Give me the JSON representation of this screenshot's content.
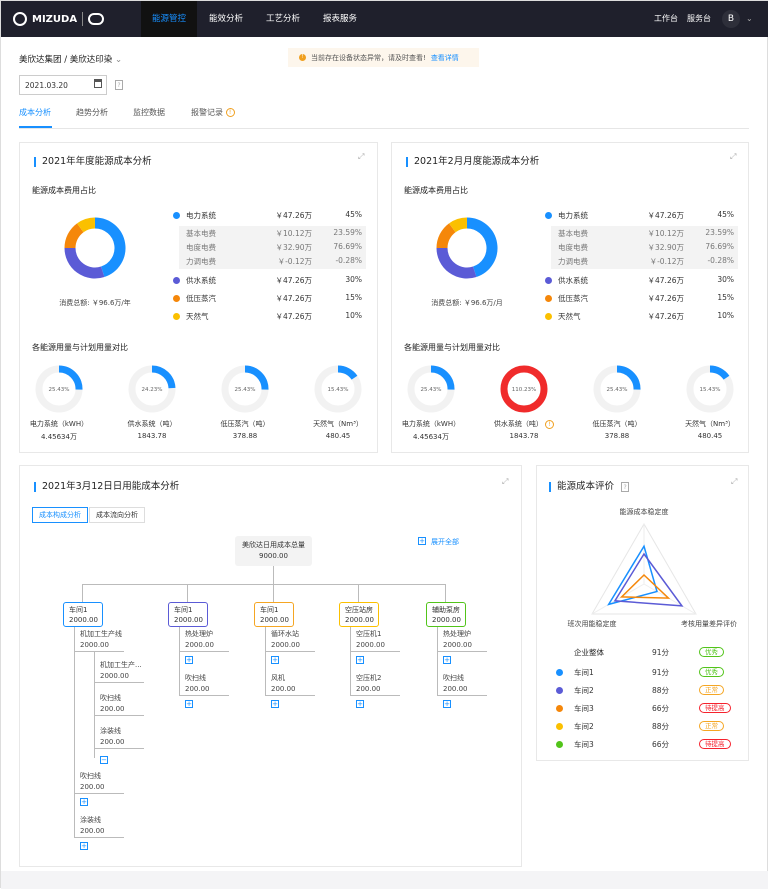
{
  "nav": {
    "brand": "MIZUDA",
    "items": [
      "能源管控",
      "能效分析",
      "工艺分析",
      "报表服务"
    ],
    "active": 0,
    "right": [
      "工作台",
      "服务台"
    ],
    "avatar": "B"
  },
  "breadcrumb": {
    "group": "美欣达集团",
    "sep": "/",
    "company": "美欣达印染"
  },
  "alert": {
    "text": "当前存在设备状态异常，请及时查看!",
    "link": "查看详情"
  },
  "date": {
    "value": "2021.03.20",
    "help": "?"
  },
  "tabs": [
    "成本分析",
    "趋势分析",
    "监控数据",
    "报警记录"
  ],
  "colors": {
    "accent": "#1890ff",
    "electric": "#1890ff",
    "water": "#5b5bd6",
    "steam": "#f5870a",
    "gas": "#fbc000",
    "green": "#52c41a",
    "red": "#f5222d"
  },
  "yearly": {
    "title": "2021年年度能源成本分析",
    "ratio_title": "能源成本费用占比",
    "total": "消费总额: ￥96.6万/年",
    "legend": [
      {
        "name": "电力系统",
        "amount": "￥47.26万",
        "pct": "45%",
        "value": 45,
        "color": "#1890ff"
      },
      {
        "name": "供水系统",
        "amount": "￥47.26万",
        "pct": "30%",
        "value": 30,
        "color": "#5b5bd6"
      },
      {
        "name": "低压蒸汽",
        "amount": "￥47.26万",
        "pct": "15%",
        "value": 15,
        "color": "#f5870a"
      },
      {
        "name": "天然气",
        "amount": "￥47.26万",
        "pct": "10%",
        "value": 10,
        "color": "#fbc000"
      }
    ],
    "sub": [
      {
        "name": "基本电费",
        "amount": "￥10.12万",
        "pct": "23.59%"
      },
      {
        "name": "电度电费",
        "amount": "￥32.90万",
        "pct": "76.69%"
      },
      {
        "name": "力调电费",
        "amount": "￥-0.12万",
        "pct": "-0.28%"
      }
    ],
    "compare_title": "各能源用量与计划用量对比",
    "rings": [
      {
        "pct": "25.43%",
        "value": 25.43,
        "label": "电力系统（kWH）",
        "amount": "4.45634万"
      },
      {
        "pct": "24.23%",
        "value": 24.23,
        "label": "供水系统（吨）",
        "amount": "1843.78"
      },
      {
        "pct": "25.43%",
        "value": 25.43,
        "label": "低压蒸汽（吨）",
        "amount": "378.88"
      },
      {
        "pct": "15.43%",
        "value": 15.43,
        "label": "天然气（Nm³）",
        "amount": "480.45"
      }
    ]
  },
  "monthly": {
    "title": "2021年2月月度能源成本分析",
    "ratio_title": "能源成本费用占比",
    "total": "消费总额: ￥96.6万/月",
    "legend": [
      {
        "name": "电力系统",
        "amount": "￥47.26万",
        "pct": "45%",
        "value": 45,
        "color": "#1890ff"
      },
      {
        "name": "供水系统",
        "amount": "￥47.26万",
        "pct": "30%",
        "value": 30,
        "color": "#5b5bd6"
      },
      {
        "name": "低压蒸汽",
        "amount": "￥47.26万",
        "pct": "15%",
        "value": 15,
        "color": "#f5870a"
      },
      {
        "name": "天然气",
        "amount": "￥47.26万",
        "pct": "10%",
        "value": 10,
        "color": "#fbc000"
      }
    ],
    "sub": [
      {
        "name": "基本电费",
        "amount": "￥10.12万",
        "pct": "23.59%"
      },
      {
        "name": "电度电费",
        "amount": "￥32.90万",
        "pct": "76.69%"
      },
      {
        "name": "力调电费",
        "amount": "￥-0.12万",
        "pct": "-0.28%"
      }
    ],
    "compare_title": "各能源用量与计划用量对比",
    "rings": [
      {
        "pct": "25.43%",
        "value": 25.43,
        "label": "电力系统（kWH）",
        "amount": "4.45634万"
      },
      {
        "pct": "110.23%",
        "value": 110.23,
        "label": "供水系统（吨）",
        "amount": "1843.78",
        "warn": true
      },
      {
        "pct": "25.43%",
        "value": 25.43,
        "label": "低压蒸汽（吨）",
        "amount": "378.88"
      },
      {
        "pct": "15.43%",
        "value": 15.43,
        "label": "天然气（Nm³）",
        "amount": "480.45"
      }
    ]
  },
  "daily": {
    "title": "2021年3月12日日用能成本分析",
    "tabs": [
      "成本构成分析",
      "成本流向分析"
    ],
    "expand_all": "展开全部",
    "root": {
      "name": "美欣达日用成本总量",
      "value": "9000.00"
    },
    "nodes": [
      {
        "name": "车间1",
        "value": "2000.00",
        "color": "#1890ff",
        "children": [
          {
            "name": "机加工生产线",
            "value": "2000.00",
            "children": [
              {
                "name": "机加工生产...",
                "value": "2000.00"
              },
              {
                "name": "吹扫线",
                "value": "200.00"
              },
              {
                "name": "涂装线",
                "value": "200.00"
              }
            ]
          },
          {
            "name": "吹扫线",
            "value": "200.00"
          },
          {
            "name": "涂装线",
            "value": "200.00"
          }
        ]
      },
      {
        "name": "车间1",
        "value": "2000.00",
        "color": "#5b5bd6",
        "children": [
          {
            "name": "热处理炉",
            "value": "2000.00"
          },
          {
            "name": "吹扫线",
            "value": "200.00"
          }
        ]
      },
      {
        "name": "车间1",
        "value": "2000.00",
        "color": "#f5a623",
        "children": [
          {
            "name": "循环水站",
            "value": "2000.00"
          },
          {
            "name": "风机",
            "value": "200.00"
          }
        ]
      },
      {
        "name": "空压站房",
        "value": "2000.00",
        "color": "#fbc000",
        "children": [
          {
            "name": "空压机1",
            "value": "2000.00"
          },
          {
            "name": "空压机2",
            "value": "200.00"
          }
        ]
      },
      {
        "name": "辅助泵房",
        "value": "2000.00",
        "color": "#52c41a",
        "children": [
          {
            "name": "热处理炉",
            "value": "2000.00"
          },
          {
            "name": "吹扫线",
            "value": "200.00"
          }
        ]
      }
    ]
  },
  "evaluation": {
    "title": "能源成本评价",
    "help": "?",
    "axes": [
      "能源成本稳定度",
      "考核用量差异评价",
      "班次用能稳定度"
    ],
    "radar": [
      {
        "color": "#1890ff",
        "values": [
          0.63,
          0.25,
          0.68
        ]
      },
      {
        "color": "#5b5bd6",
        "values": [
          0.5,
          0.73,
          0.56
        ]
      },
      {
        "color": "#f5870a",
        "values": [
          0.15,
          0.47,
          0.43
        ]
      }
    ],
    "overall": {
      "name": "企业整体",
      "score": "91分",
      "badge": "优秀",
      "badge_color": "#52c41a"
    },
    "rows": [
      {
        "name": "车间1",
        "score": "91分",
        "badge": "优秀",
        "color": "#1890ff",
        "badge_color": "#52c41a"
      },
      {
        "name": "车间2",
        "score": "88分",
        "badge": "正常",
        "color": "#5b5bd6",
        "badge_color": "#f5a623"
      },
      {
        "name": "车间3",
        "score": "66分",
        "badge": "待提高",
        "color": "#f5870a",
        "badge_color": "#f5222d"
      },
      {
        "name": "车间2",
        "score": "88分",
        "badge": "正常",
        "color": "#fbc000",
        "badge_color": "#f5a623"
      },
      {
        "name": "车间3",
        "score": "66分",
        "badge": "待提高",
        "color": "#52c41a",
        "badge_color": "#f5222d"
      }
    ]
  }
}
